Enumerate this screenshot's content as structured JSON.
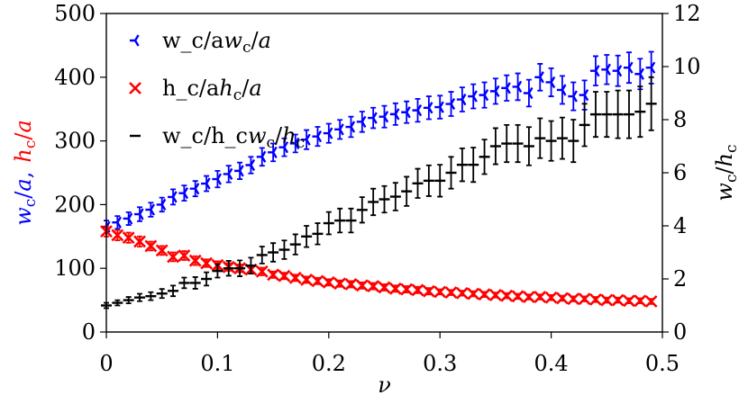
{
  "chart_data": {
    "type": "errorbar",
    "xlabel": "ν",
    "ylabel": [
      {
        "text": "w_c/a,",
        "color": "#0000ff"
      },
      {
        "text": "h_c/a",
        "color": "#ff0000"
      }
    ],
    "y2label": "w_c/h_c",
    "legend": "upper left",
    "xlim": [
      0,
      0.5
    ],
    "xticks": [
      0,
      0.1,
      0.2,
      0.3,
      0.4,
      0.5
    ],
    "ylim": [
      0,
      500
    ],
    "yticks": [
      0,
      100,
      200,
      300,
      400,
      500
    ],
    "y2lim": [
      0,
      12
    ],
    "y2ticks": [
      0,
      2,
      4,
      6,
      8,
      10,
      12
    ],
    "x": [
      0,
      0.01,
      0.02,
      0.03,
      0.04,
      0.05,
      0.06,
      0.07,
      0.08,
      0.09,
      0.1,
      0.11,
      0.12,
      0.13,
      0.14,
      0.15,
      0.16,
      0.17,
      0.18,
      0.19,
      0.2,
      0.21,
      0.22,
      0.23,
      0.24,
      0.25,
      0.26,
      0.27,
      0.28,
      0.29,
      0.3,
      0.31,
      0.32,
      0.33,
      0.34,
      0.35,
      0.36,
      0.37,
      0.38,
      0.39,
      0.4,
      0.41,
      0.42,
      0.43,
      0.44,
      0.45,
      0.46,
      0.47,
      0.48,
      0.49
    ],
    "series": [
      {
        "name": "w_c/a",
        "color": "#0000ff",
        "marker": "tri_left",
        "axis": "y",
        "values": [
          165,
          172,
          178,
          185,
          192,
          200,
          212,
          218,
          225,
          233,
          240,
          248,
          253,
          262,
          275,
          282,
          290,
          296,
          302,
          307,
          312,
          318,
          322,
          330,
          336,
          338,
          342,
          345,
          348,
          352,
          353,
          358,
          365,
          370,
          372,
          378,
          383,
          385,
          375,
          400,
          392,
          380,
          370,
          372,
          410,
          412,
          410,
          415,
          405,
          415
        ],
        "errors": [
          10,
          10,
          10,
          11,
          11,
          11,
          12,
          12,
          12,
          12,
          13,
          13,
          13,
          13,
          14,
          14,
          14,
          14,
          15,
          15,
          15,
          15,
          16,
          16,
          16,
          17,
          17,
          17,
          18,
          18,
          18,
          19,
          19,
          19,
          20,
          20,
          20,
          21,
          21,
          21,
          22,
          22,
          22,
          23,
          23,
          23,
          24,
          24,
          24,
          25
        ]
      },
      {
        "name": "h_c/a",
        "color": "#ff0000",
        "marker": "x",
        "axis": "y",
        "values": [
          158,
          152,
          148,
          142,
          135,
          128,
          118,
          120,
          112,
          108,
          105,
          102,
          100,
          98,
          95,
          90,
          88,
          85,
          82,
          80,
          78,
          76,
          75,
          73,
          72,
          70,
          68,
          67,
          66,
          64,
          63,
          62,
          61,
          60,
          59,
          58,
          57,
          56,
          55,
          55,
          54,
          53,
          52,
          52,
          51,
          50,
          50,
          49,
          49,
          48
        ],
        "errors": [
          8,
          8,
          8,
          8,
          7,
          7,
          7,
          7,
          7,
          6,
          6,
          6,
          6,
          6,
          6,
          5,
          5,
          5,
          5,
          5,
          5,
          5,
          5,
          5,
          5,
          5,
          5,
          5,
          5,
          5,
          4,
          4,
          4,
          4,
          4,
          4,
          4,
          4,
          4,
          4,
          4,
          4,
          4,
          4,
          4,
          4,
          4,
          4,
          4,
          4
        ]
      },
      {
        "name": "w_c/h_c",
        "color": "#000000",
        "marker": "hline",
        "axis": "y2",
        "values": [
          1.0,
          1.1,
          1.2,
          1.3,
          1.35,
          1.45,
          1.55,
          1.85,
          1.85,
          2.0,
          2.3,
          2.4,
          2.4,
          2.5,
          2.9,
          3.0,
          3.1,
          3.3,
          3.6,
          3.7,
          4.1,
          4.2,
          4.2,
          4.6,
          4.9,
          5.0,
          5.1,
          5.3,
          5.6,
          5.7,
          5.7,
          6.0,
          6.3,
          6.3,
          6.6,
          7.0,
          7.1,
          7.1,
          7.0,
          7.3,
          7.2,
          7.3,
          7.2,
          7.8,
          8.2,
          8.2,
          8.2,
          8.2,
          8.3,
          8.6
        ],
        "errors": [
          0.1,
          0.1,
          0.12,
          0.14,
          0.15,
          0.17,
          0.2,
          0.2,
          0.22,
          0.25,
          0.25,
          0.28,
          0.3,
          0.3,
          0.32,
          0.35,
          0.35,
          0.38,
          0.4,
          0.4,
          0.42,
          0.45,
          0.45,
          0.48,
          0.5,
          0.5,
          0.52,
          0.55,
          0.55,
          0.58,
          0.6,
          0.6,
          0.62,
          0.65,
          0.65,
          0.68,
          0.7,
          0.7,
          0.72,
          0.75,
          0.75,
          0.78,
          0.8,
          0.8,
          0.85,
          0.85,
          0.9,
          0.9,
          0.95,
          1.0
        ]
      }
    ]
  }
}
